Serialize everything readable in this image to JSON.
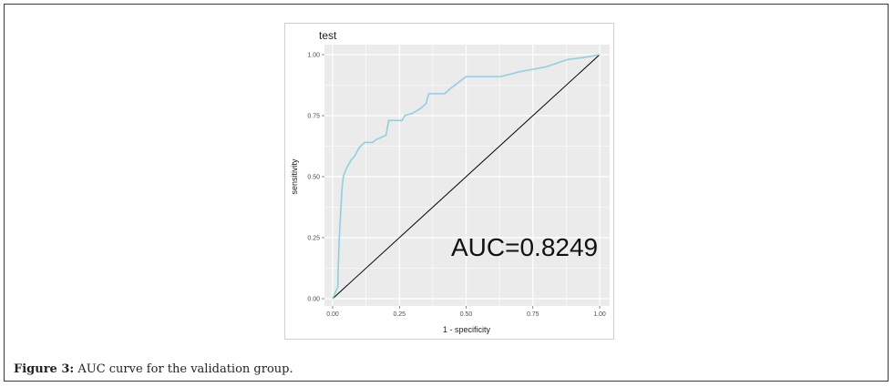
{
  "caption": {
    "label": "Figure 3:",
    "text": "AUC curve for the validation group."
  },
  "chart_data": {
    "type": "line",
    "title": "test",
    "xlabel": "1 - specificity",
    "ylabel": "sensitivity",
    "xlim": [
      0,
      1
    ],
    "ylim": [
      0,
      1
    ],
    "xticks": [
      "0.00",
      "0.25",
      "0.50",
      "0.75",
      "1.00"
    ],
    "yticks": [
      "0.00",
      "0.25",
      "0.50",
      "0.75",
      "1.00"
    ],
    "grid": true,
    "annotation": "AUC=0.8249",
    "colors": {
      "roc": "#8fcfe0",
      "diagonal": "#000000",
      "panel": "#ebebeb",
      "grid": "#ffffff"
    },
    "series": [
      {
        "x": [
          0,
          0.02,
          0.02,
          0.025,
          0.03,
          0.035,
          0.04,
          0.05,
          0.06,
          0.07,
          0.08,
          0.09,
          0.1,
          0.12,
          0.15,
          0.16,
          0.2,
          0.21,
          0.26,
          0.27,
          0.3,
          0.33,
          0.35,
          0.36,
          0.42,
          0.44,
          0.5,
          0.57,
          0.63,
          0.7,
          0.8,
          0.88,
          0.95,
          1.0
        ],
        "y": [
          0,
          0.05,
          0.1,
          0.25,
          0.35,
          0.45,
          0.5,
          0.53,
          0.55,
          0.57,
          0.58,
          0.6,
          0.62,
          0.64,
          0.64,
          0.65,
          0.67,
          0.73,
          0.73,
          0.75,
          0.76,
          0.78,
          0.8,
          0.84,
          0.84,
          0.86,
          0.91,
          0.91,
          0.91,
          0.93,
          0.95,
          0.98,
          0.99,
          1.0
        ]
      },
      {
        "x": [
          0,
          1
        ],
        "y": [
          0,
          1
        ]
      }
    ]
  }
}
